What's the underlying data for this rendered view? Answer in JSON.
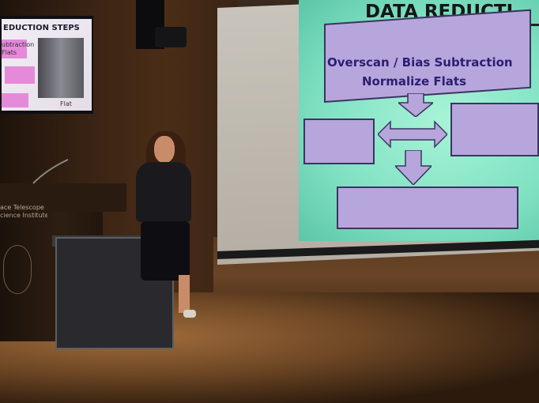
{
  "scene": {
    "projected_slide": {
      "title": "DATA REDUCTI",
      "step_line_1": "Overscan / Bias Subtraction",
      "step_line_2": "Normalize Flats"
    },
    "side_monitor": {
      "title": "EDUCTION STEPS",
      "line_1": "ubtraction",
      "line_2": "Flats",
      "caption": "Flat"
    },
    "podium_sign": {
      "line_1": "ace Telescope",
      "line_2": "cience Institute"
    }
  }
}
